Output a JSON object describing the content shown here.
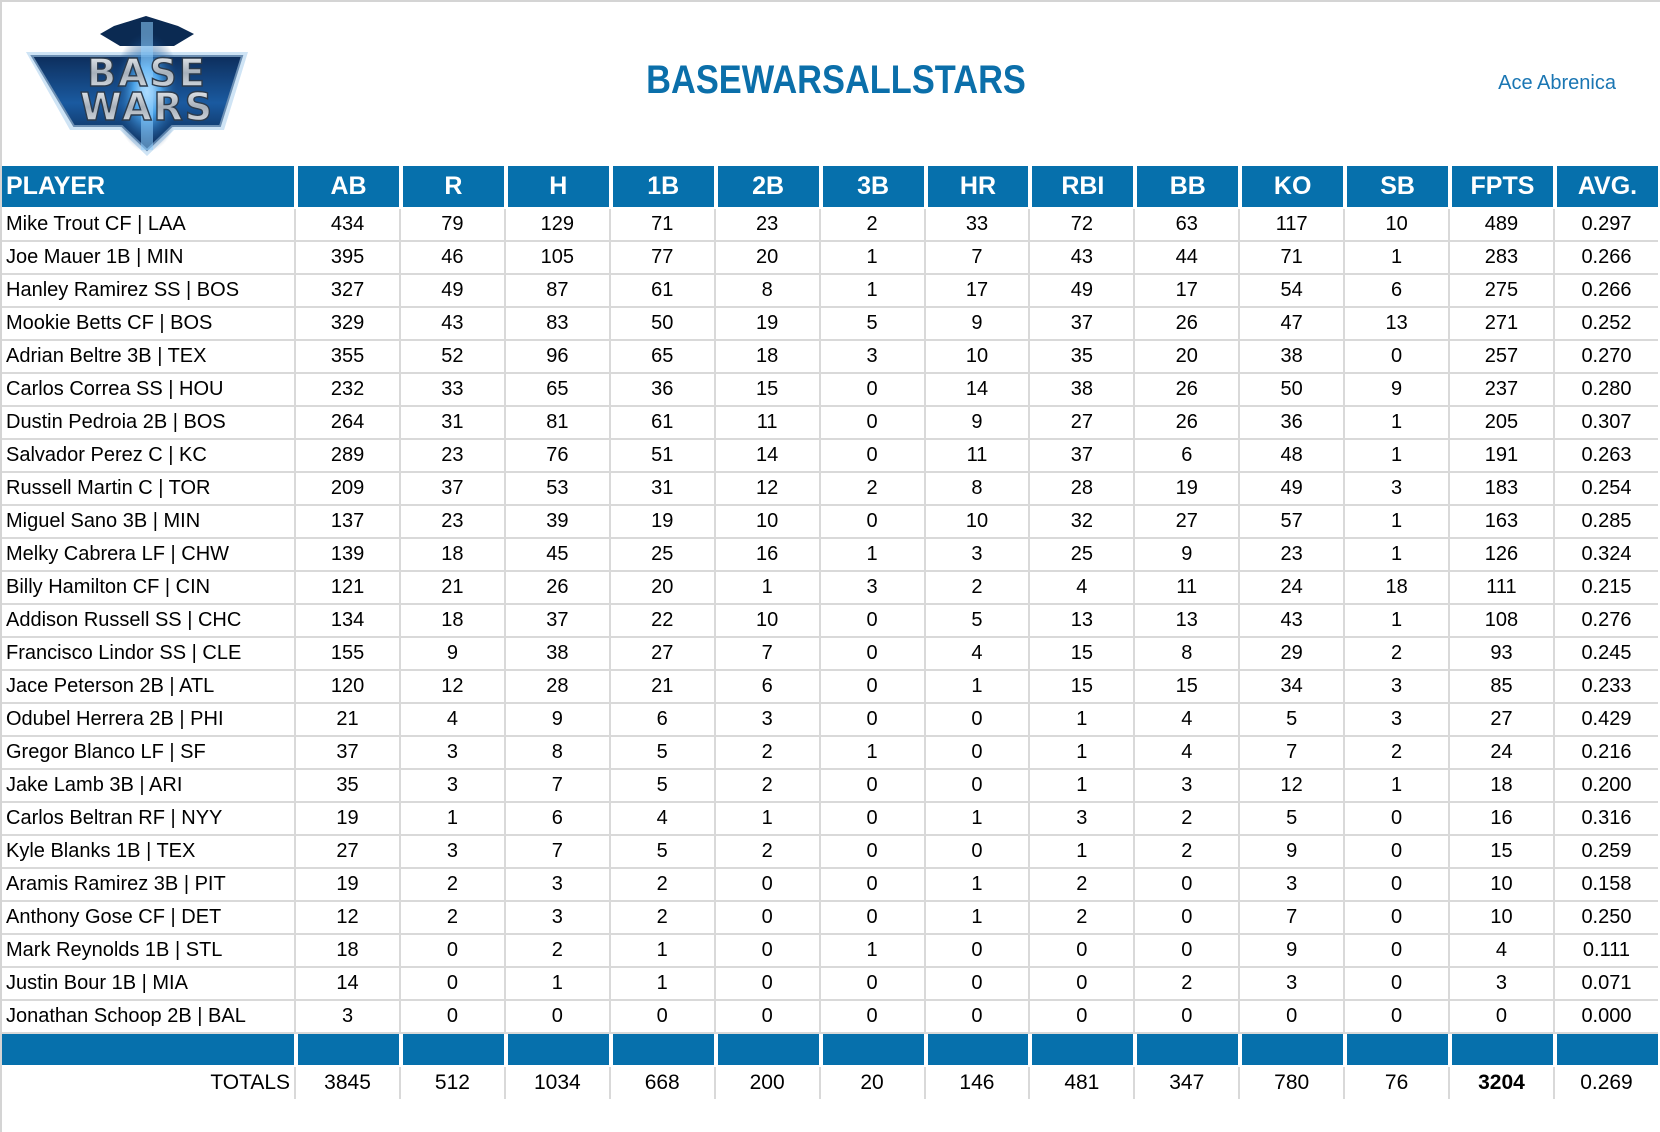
{
  "header": {
    "logo": {
      "name": "base-wars-logo",
      "line1": "BASE",
      "line2": "WARS"
    },
    "title": "BASEWARSALLSTARS",
    "author": "Ace Abrenica"
  },
  "colors": {
    "accent": "#0670ac",
    "title": "#0b6faa",
    "author": "#1a76b3",
    "grid": "#d9d9d9"
  },
  "table": {
    "columns": [
      "PLAYER",
      "AB",
      "R",
      "H",
      "1B",
      "2B",
      "3B",
      "HR",
      "RBI",
      "BB",
      "KO",
      "SB",
      "FPTS",
      "AVG."
    ],
    "rows": [
      [
        "Mike Trout CF | LAA",
        "434",
        "79",
        "129",
        "71",
        "23",
        "2",
        "33",
        "72",
        "63",
        "117",
        "10",
        "489",
        "0.297"
      ],
      [
        "Joe Mauer 1B | MIN",
        "395",
        "46",
        "105",
        "77",
        "20",
        "1",
        "7",
        "43",
        "44",
        "71",
        "1",
        "283",
        "0.266"
      ],
      [
        "Hanley Ramirez SS | BOS",
        "327",
        "49",
        "87",
        "61",
        "8",
        "1",
        "17",
        "49",
        "17",
        "54",
        "6",
        "275",
        "0.266"
      ],
      [
        "Mookie Betts CF | BOS",
        "329",
        "43",
        "83",
        "50",
        "19",
        "5",
        "9",
        "37",
        "26",
        "47",
        "13",
        "271",
        "0.252"
      ],
      [
        "Adrian Beltre 3B | TEX",
        "355",
        "52",
        "96",
        "65",
        "18",
        "3",
        "10",
        "35",
        "20",
        "38",
        "0",
        "257",
        "0.270"
      ],
      [
        "Carlos Correa SS | HOU",
        "232",
        "33",
        "65",
        "36",
        "15",
        "0",
        "14",
        "38",
        "26",
        "50",
        "9",
        "237",
        "0.280"
      ],
      [
        "Dustin Pedroia 2B | BOS",
        "264",
        "31",
        "81",
        "61",
        "11",
        "0",
        "9",
        "27",
        "26",
        "36",
        "1",
        "205",
        "0.307"
      ],
      [
        "Salvador Perez C | KC",
        "289",
        "23",
        "76",
        "51",
        "14",
        "0",
        "11",
        "37",
        "6",
        "48",
        "1",
        "191",
        "0.263"
      ],
      [
        "Russell Martin C | TOR",
        "209",
        "37",
        "53",
        "31",
        "12",
        "2",
        "8",
        "28",
        "19",
        "49",
        "3",
        "183",
        "0.254"
      ],
      [
        "Miguel Sano 3B | MIN",
        "137",
        "23",
        "39",
        "19",
        "10",
        "0",
        "10",
        "32",
        "27",
        "57",
        "1",
        "163",
        "0.285"
      ],
      [
        "Melky Cabrera LF | CHW",
        "139",
        "18",
        "45",
        "25",
        "16",
        "1",
        "3",
        "25",
        "9",
        "23",
        "1",
        "126",
        "0.324"
      ],
      [
        "Billy Hamilton CF | CIN",
        "121",
        "21",
        "26",
        "20",
        "1",
        "3",
        "2",
        "4",
        "11",
        "24",
        "18",
        "111",
        "0.215"
      ],
      [
        "Addison Russell SS | CHC",
        "134",
        "18",
        "37",
        "22",
        "10",
        "0",
        "5",
        "13",
        "13",
        "43",
        "1",
        "108",
        "0.276"
      ],
      [
        "Francisco Lindor SS | CLE",
        "155",
        "9",
        "38",
        "27",
        "7",
        "0",
        "4",
        "15",
        "8",
        "29",
        "2",
        "93",
        "0.245"
      ],
      [
        "Jace Peterson 2B | ATL",
        "120",
        "12",
        "28",
        "21",
        "6",
        "0",
        "1",
        "15",
        "15",
        "34",
        "3",
        "85",
        "0.233"
      ],
      [
        "Odubel Herrera 2B | PHI",
        "21",
        "4",
        "9",
        "6",
        "3",
        "0",
        "0",
        "1",
        "4",
        "5",
        "3",
        "27",
        "0.429"
      ],
      [
        "Gregor Blanco LF | SF",
        "37",
        "3",
        "8",
        "5",
        "2",
        "1",
        "0",
        "1",
        "4",
        "7",
        "2",
        "24",
        "0.216"
      ],
      [
        "Jake Lamb 3B | ARI",
        "35",
        "3",
        "7",
        "5",
        "2",
        "0",
        "0",
        "1",
        "3",
        "12",
        "1",
        "18",
        "0.200"
      ],
      [
        "Carlos Beltran RF | NYY",
        "19",
        "1",
        "6",
        "4",
        "1",
        "0",
        "1",
        "3",
        "2",
        "5",
        "0",
        "16",
        "0.316"
      ],
      [
        "Kyle Blanks 1B | TEX",
        "27",
        "3",
        "7",
        "5",
        "2",
        "0",
        "0",
        "1",
        "2",
        "9",
        "0",
        "15",
        "0.259"
      ],
      [
        "Aramis Ramirez 3B | PIT",
        "19",
        "2",
        "3",
        "2",
        "0",
        "0",
        "1",
        "2",
        "0",
        "3",
        "0",
        "10",
        "0.158"
      ],
      [
        "Anthony Gose CF | DET",
        "12",
        "2",
        "3",
        "2",
        "0",
        "0",
        "1",
        "2",
        "0",
        "7",
        "0",
        "10",
        "0.250"
      ],
      [
        "Mark Reynolds 1B | STL",
        "18",
        "0",
        "2",
        "1",
        "0",
        "1",
        "0",
        "0",
        "0",
        "9",
        "0",
        "4",
        "0.111"
      ],
      [
        "Justin Bour 1B | MIA",
        "14",
        "0",
        "1",
        "1",
        "0",
        "0",
        "0",
        "0",
        "2",
        "3",
        "0",
        "3",
        "0.071"
      ],
      [
        "Jonathan Schoop 2B | BAL",
        "3",
        "0",
        "0",
        "0",
        "0",
        "0",
        "0",
        "0",
        "0",
        "0",
        "0",
        "0",
        "0.000"
      ]
    ],
    "totals": [
      "TOTALS",
      "3845",
      "512",
      "1034",
      "668",
      "200",
      "20",
      "146",
      "481",
      "347",
      "780",
      "76",
      "3204",
      "0.269"
    ]
  }
}
